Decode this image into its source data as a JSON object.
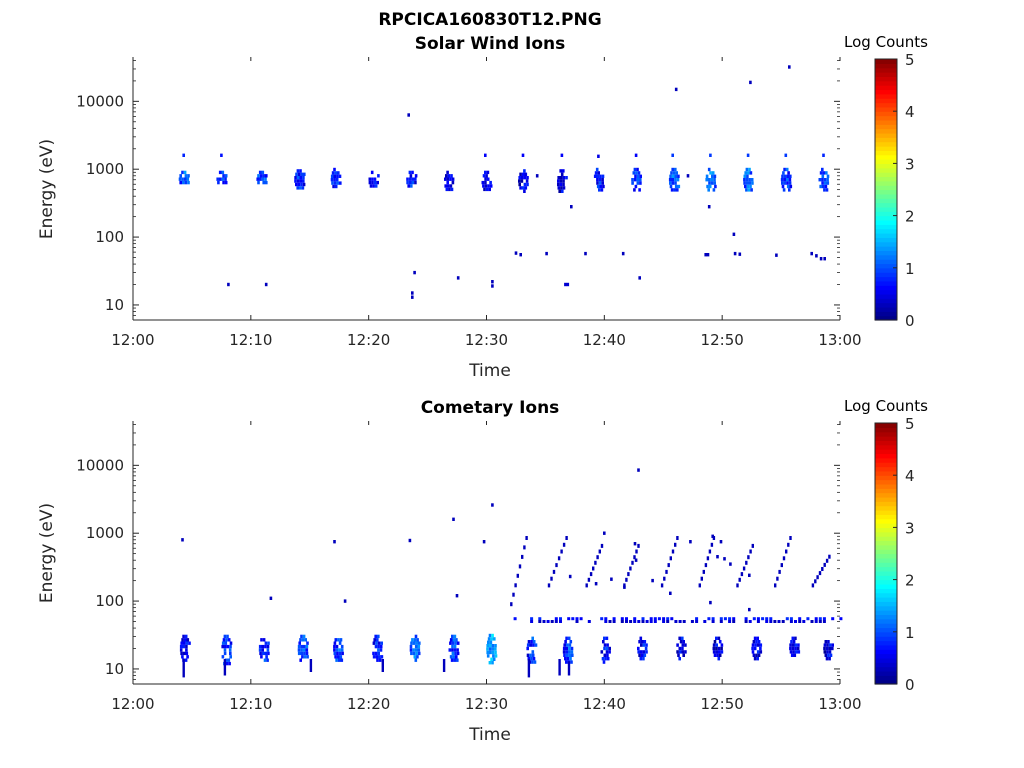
{
  "figure_title": "RPCICA160830T12.PNG",
  "chart_data": [
    {
      "type": "heatmap",
      "title": "Solar Wind Ions",
      "xlabel": "Time",
      "ylabel": "Energy (eV)",
      "yscale": "log",
      "ylim": [
        6,
        45000
      ],
      "x_ticks": [
        "12:00",
        "12:10",
        "12:20",
        "12:30",
        "12:40",
        "12:50",
        "13:00"
      ],
      "y_ticks": [
        "10",
        "100",
        "1000",
        "10000"
      ],
      "colorbar": {
        "label": "Log Counts",
        "range": [
          0,
          5
        ],
        "ticks": [
          "0",
          "1",
          "2",
          "3",
          "4",
          "5"
        ],
        "colormap": "jet"
      },
      "clusters": [
        {
          "t": 4.3,
          "e_lo": 600,
          "e_hi": 950,
          "c": 1.1
        },
        {
          "t": 7.5,
          "e_lo": 600,
          "e_hi": 950,
          "c": 0.9
        },
        {
          "t": 10.9,
          "e_lo": 600,
          "e_hi": 950,
          "c": 1.1
        },
        {
          "t": 14.1,
          "e_lo": 550,
          "e_hi": 1000,
          "c": 0.9
        },
        {
          "t": 17.2,
          "e_lo": 550,
          "e_hi": 1050,
          "c": 0.9
        },
        {
          "t": 20.4,
          "e_lo": 550,
          "e_hi": 950,
          "c": 0.8
        },
        {
          "t": 23.6,
          "e_lo": 550,
          "e_hi": 950,
          "c": 0.8
        },
        {
          "t": 26.8,
          "e_lo": 500,
          "e_hi": 950,
          "c": 0.6
        },
        {
          "t": 30.0,
          "e_lo": 500,
          "e_hi": 950,
          "c": 0.7
        },
        {
          "t": 33.1,
          "e_lo": 500,
          "e_hi": 1000,
          "c": 0.6
        },
        {
          "t": 36.4,
          "e_lo": 450,
          "e_hi": 1000,
          "c": 0.6
        },
        {
          "t": 39.5,
          "e_lo": 500,
          "e_hi": 1050,
          "c": 0.8
        },
        {
          "t": 42.7,
          "e_lo": 500,
          "e_hi": 1050,
          "c": 0.9
        },
        {
          "t": 45.9,
          "e_lo": 500,
          "e_hi": 1050,
          "c": 1.2
        },
        {
          "t": 49.0,
          "e_lo": 500,
          "e_hi": 1050,
          "c": 1.2
        },
        {
          "t": 52.2,
          "e_lo": 500,
          "e_hi": 1050,
          "c": 1.2
        },
        {
          "t": 55.4,
          "e_lo": 500,
          "e_hi": 1050,
          "c": 0.9
        },
        {
          "t": 58.6,
          "e_lo": 500,
          "e_hi": 1050,
          "c": 1.0
        }
      ],
      "points": [
        {
          "t": 4.3,
          "e": 1600,
          "c": 0.8
        },
        {
          "t": 7.5,
          "e": 1600,
          "c": 0.7
        },
        {
          "t": 29.9,
          "e": 1600,
          "c": 0.6
        },
        {
          "t": 33.1,
          "e": 1600,
          "c": 0.6
        },
        {
          "t": 36.4,
          "e": 1600,
          "c": 0.6
        },
        {
          "t": 39.5,
          "e": 1550,
          "c": 0.5
        },
        {
          "t": 42.7,
          "e": 1600,
          "c": 0.6
        },
        {
          "t": 45.8,
          "e": 1600,
          "c": 0.9
        },
        {
          "t": 49.0,
          "e": 1600,
          "c": 0.9
        },
        {
          "t": 52.2,
          "e": 1600,
          "c": 0.9
        },
        {
          "t": 55.4,
          "e": 1600,
          "c": 0.9
        },
        {
          "t": 58.6,
          "e": 1600,
          "c": 0.8
        },
        {
          "t": 23.4,
          "e": 6300,
          "c": 0.3
        },
        {
          "t": 46.1,
          "e": 15000,
          "c": 0.3
        },
        {
          "t": 52.4,
          "e": 19000,
          "c": 0.3
        },
        {
          "t": 55.7,
          "e": 32000,
          "c": 0.3
        },
        {
          "t": 37.2,
          "e": 280,
          "c": 0.3
        },
        {
          "t": 48.9,
          "e": 280,
          "c": 0.3
        },
        {
          "t": 34.3,
          "e": 800,
          "c": 0.3
        },
        {
          "t": 47.1,
          "e": 800,
          "c": 0.3
        },
        {
          "t": 51.0,
          "e": 110,
          "c": 0.3
        },
        {
          "t": 32.5,
          "e": 58,
          "c": 0.3
        },
        {
          "t": 32.9,
          "e": 55,
          "c": 0.3
        },
        {
          "t": 35.1,
          "e": 57,
          "c": 0.3
        },
        {
          "t": 38.4,
          "e": 57,
          "c": 0.3
        },
        {
          "t": 41.6,
          "e": 57,
          "c": 0.3
        },
        {
          "t": 48.6,
          "e": 55,
          "c": 0.3
        },
        {
          "t": 48.8,
          "e": 55,
          "c": 0.3
        },
        {
          "t": 51.1,
          "e": 57,
          "c": 0.3
        },
        {
          "t": 51.5,
          "e": 56,
          "c": 0.3
        },
        {
          "t": 54.6,
          "e": 54,
          "c": 0.3
        },
        {
          "t": 57.6,
          "e": 57,
          "c": 0.3
        },
        {
          "t": 58.0,
          "e": 53,
          "c": 0.3
        },
        {
          "t": 58.4,
          "e": 48,
          "c": 0.3
        },
        {
          "t": 58.7,
          "e": 48,
          "c": 0.3
        },
        {
          "t": 8.1,
          "e": 20,
          "c": 0.3
        },
        {
          "t": 11.3,
          "e": 20,
          "c": 0.3
        },
        {
          "t": 23.9,
          "e": 30,
          "c": 0.3
        },
        {
          "t": 27.6,
          "e": 25,
          "c": 0.3
        },
        {
          "t": 36.7,
          "e": 20,
          "c": 0.4
        },
        {
          "t": 36.9,
          "e": 20,
          "c": 0.4
        },
        {
          "t": 43.0,
          "e": 25,
          "c": 0.3
        },
        {
          "t": 23.7,
          "e": 15,
          "c": 0.3
        },
        {
          "t": 23.7,
          "e": 13,
          "c": 0.3
        },
        {
          "t": 30.5,
          "e": 22,
          "c": 0.3
        },
        {
          "t": 30.5,
          "e": 19,
          "c": 0.3
        }
      ]
    },
    {
      "type": "heatmap",
      "title": "Cometary Ions",
      "xlabel": "Time",
      "ylabel": "Energy (eV)",
      "yscale": "log",
      "ylim": [
        6,
        45000
      ],
      "x_ticks": [
        "12:00",
        "12:10",
        "12:20",
        "12:30",
        "12:40",
        "12:50",
        "13:00"
      ],
      "y_ticks": [
        "10",
        "100",
        "1000",
        "10000"
      ],
      "colorbar": {
        "label": "Log Counts",
        "range": [
          0,
          5
        ],
        "ticks": [
          "0",
          "1",
          "2",
          "3",
          "4",
          "5"
        ],
        "colormap": "jet"
      },
      "clusters": [
        {
          "t": 4.4,
          "e_lo": 14,
          "e_hi": 32,
          "c": 0.7
        },
        {
          "t": 7.9,
          "e_lo": 12,
          "e_hi": 32,
          "c": 1.0
        },
        {
          "t": 11.1,
          "e_lo": 14,
          "e_hi": 32,
          "c": 0.9
        },
        {
          "t": 14.4,
          "e_lo": 13,
          "e_hi": 32,
          "c": 1.1
        },
        {
          "t": 17.4,
          "e_lo": 14,
          "e_hi": 32,
          "c": 1.0
        },
        {
          "t": 20.7,
          "e_lo": 13,
          "e_hi": 32,
          "c": 0.8
        },
        {
          "t": 23.9,
          "e_lo": 14,
          "e_hi": 32,
          "c": 1.2
        },
        {
          "t": 27.2,
          "e_lo": 14,
          "e_hi": 32,
          "c": 1.0
        },
        {
          "t": 30.4,
          "e_lo": 13,
          "e_hi": 33,
          "c": 1.5
        },
        {
          "t": 33.8,
          "e_lo": 13,
          "e_hi": 30,
          "c": 0.9
        },
        {
          "t": 36.9,
          "e_lo": 13,
          "e_hi": 30,
          "c": 1.0
        },
        {
          "t": 40.1,
          "e_lo": 13,
          "e_hi": 30,
          "c": 0.8
        },
        {
          "t": 43.2,
          "e_lo": 15,
          "e_hi": 30,
          "c": 0.7
        },
        {
          "t": 46.5,
          "e_lo": 15,
          "e_hi": 30,
          "c": 0.6
        },
        {
          "t": 49.6,
          "e_lo": 15,
          "e_hi": 30,
          "c": 0.6
        },
        {
          "t": 52.9,
          "e_lo": 15,
          "e_hi": 30,
          "c": 0.6
        },
        {
          "t": 56.1,
          "e_lo": 16,
          "e_hi": 30,
          "c": 0.6
        },
        {
          "t": 59.0,
          "e_lo": 15,
          "e_hi": 30,
          "c": 0.6
        }
      ],
      "streaks": [
        {
          "t": 4.3,
          "e_lo": 7.5,
          "e_hi": 14,
          "c": 0.3
        },
        {
          "t": 7.8,
          "e_lo": 8,
          "e_hi": 14,
          "c": 0.3
        },
        {
          "t": 15.1,
          "e_lo": 9,
          "e_hi": 14,
          "c": 0.3
        },
        {
          "t": 21.2,
          "e_lo": 9,
          "e_hi": 14,
          "c": 0.3
        },
        {
          "t": 26.4,
          "e_lo": 9,
          "e_hi": 14,
          "c": 0.3
        },
        {
          "t": 33.6,
          "e_lo": 7.5,
          "e_hi": 14,
          "c": 0.3
        },
        {
          "t": 36.2,
          "e_lo": 8,
          "e_hi": 14,
          "c": 0.3
        },
        {
          "t": 37.0,
          "e_lo": 8,
          "e_hi": 13,
          "c": 0.3
        }
      ],
      "bands": [
        {
          "t0": 32.3,
          "t1": 60.0,
          "e": 55,
          "c": 0.7
        },
        {
          "t0": 33.0,
          "t1": 59.5,
          "e": 50,
          "c": 0.4
        }
      ],
      "ramps": [
        {
          "t0": 32.0,
          "t1": 33.3,
          "e0": 90,
          "e1": 850
        },
        {
          "t0": 35.2,
          "t1": 36.7,
          "e0": 170,
          "e1": 850
        },
        {
          "t0": 38.4,
          "t1": 39.7,
          "e0": 170,
          "e1": 650
        },
        {
          "t0": 41.6,
          "t1": 42.8,
          "e0": 170,
          "e1": 650
        },
        {
          "t0": 44.8,
          "t1": 46.1,
          "e0": 170,
          "e1": 850
        },
        {
          "t0": 48.0,
          "t1": 49.2,
          "e0": 170,
          "e1": 850
        },
        {
          "t0": 51.2,
          "t1": 52.5,
          "e0": 170,
          "e1": 650
        },
        {
          "t0": 54.4,
          "t1": 55.7,
          "e0": 170,
          "e1": 850
        },
        {
          "t0": 57.6,
          "t1": 59.0,
          "e0": 170,
          "e1": 450
        }
      ],
      "points": [
        {
          "t": 4.2,
          "e": 800,
          "c": 0.3
        },
        {
          "t": 17.1,
          "e": 750,
          "c": 0.3
        },
        {
          "t": 23.5,
          "e": 780,
          "c": 0.3
        },
        {
          "t": 29.8,
          "e": 750,
          "c": 0.3
        },
        {
          "t": 27.2,
          "e": 1600,
          "c": 0.3
        },
        {
          "t": 30.5,
          "e": 2600,
          "c": 0.3
        },
        {
          "t": 42.9,
          "e": 8500,
          "c": 0.3
        },
        {
          "t": 11.7,
          "e": 110,
          "c": 0.3
        },
        {
          "t": 18.0,
          "e": 100,
          "c": 0.3
        },
        {
          "t": 27.5,
          "e": 120,
          "c": 0.3
        },
        {
          "t": 40.0,
          "e": 1000,
          "c": 0.3
        },
        {
          "t": 42.6,
          "e": 700,
          "c": 0.3
        },
        {
          "t": 47.3,
          "e": 750,
          "c": 0.3
        },
        {
          "t": 49.2,
          "e": 900,
          "c": 0.3
        },
        {
          "t": 49.9,
          "e": 750,
          "c": 0.3
        },
        {
          "t": 42.7,
          "e": 400,
          "c": 0.3
        },
        {
          "t": 49.6,
          "e": 450,
          "c": 0.3
        },
        {
          "t": 50.2,
          "e": 420,
          "c": 0.3
        },
        {
          "t": 50.7,
          "e": 350,
          "c": 0.3
        },
        {
          "t": 37.1,
          "e": 230,
          "c": 0.3
        },
        {
          "t": 40.6,
          "e": 210,
          "c": 0.3
        },
        {
          "t": 44.1,
          "e": 200,
          "c": 0.3
        },
        {
          "t": 52.3,
          "e": 240,
          "c": 0.3
        },
        {
          "t": 39.3,
          "e": 180,
          "c": 0.3
        },
        {
          "t": 49.0,
          "e": 95,
          "c": 0.3
        },
        {
          "t": 52.3,
          "e": 75,
          "c": 0.3
        },
        {
          "t": 41.7,
          "e": 160,
          "c": 0.3
        },
        {
          "t": 45.6,
          "e": 130,
          "c": 0.3
        }
      ]
    }
  ]
}
